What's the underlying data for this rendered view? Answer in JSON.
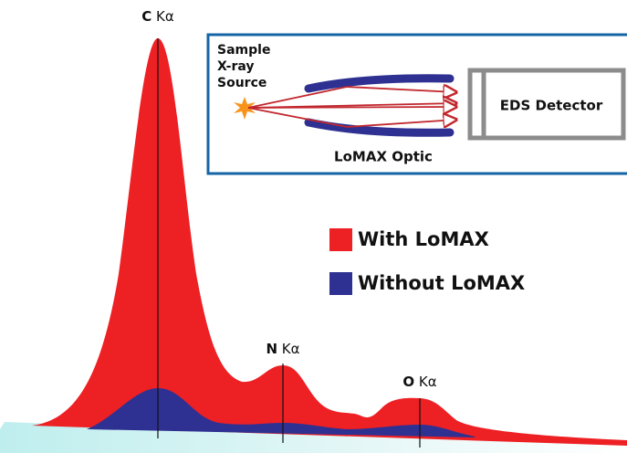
{
  "peaks": [
    {
      "element": "C",
      "line": "Kα"
    },
    {
      "element": "N",
      "line": "Kα"
    },
    {
      "element": "O",
      "line": "Kα"
    }
  ],
  "inset": {
    "source": [
      "Sample",
      "X-ray",
      "Source"
    ],
    "optic": "LoMAX Optic",
    "detector": "EDS Detector"
  },
  "legend": [
    "With LoMAX",
    "Without LoMAX"
  ]
}
